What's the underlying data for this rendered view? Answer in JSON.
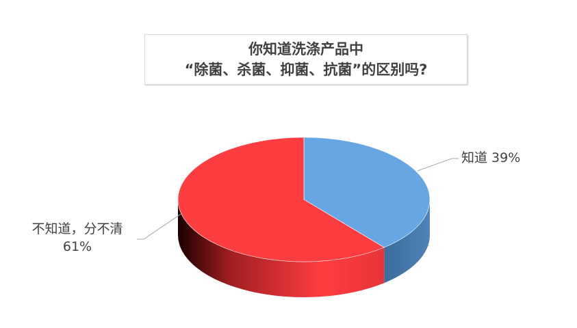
{
  "chart_data": {
    "type": "pie",
    "style": "3d",
    "title_lines": [
      "你知道洗涤产品中",
      "“除菌、杀菌、抑菌、抗菌”的区别吗?"
    ],
    "slices": [
      {
        "label": "知道",
        "value": 39,
        "display": "知道 39%",
        "color": "#65a6e3"
      },
      {
        "label": "不知道，分不清",
        "value": 61,
        "display_line1": "不知道，分不清",
        "display_line2": "61%",
        "color": "#fe3d41"
      }
    ],
    "legend": "none"
  }
}
